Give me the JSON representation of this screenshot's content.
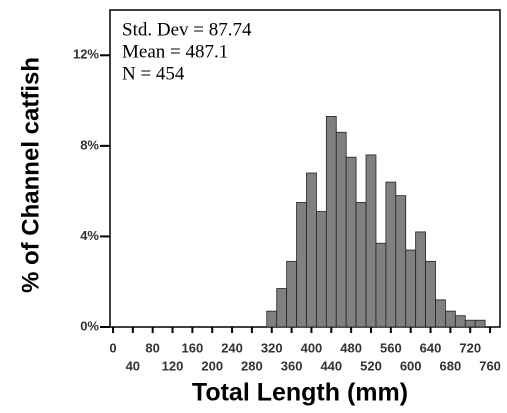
{
  "chart_data": {
    "type": "histogram",
    "annotations": [
      "Std.  Dev = 87.74",
      "Mean = 487.1",
      "N = 454"
    ],
    "x_label": "Total Length (mm)",
    "y_label": "% of Channel catfish",
    "bins": [
      310,
      330,
      350,
      370,
      390,
      410,
      430,
      450,
      470,
      490,
      510,
      530,
      550,
      570,
      590,
      610,
      630,
      650,
      670,
      690,
      710,
      730,
      750
    ],
    "values": [
      0.7,
      1.7,
      2.9,
      5.5,
      6.8,
      5.1,
      9.3,
      8.6,
      7.5,
      5.5,
      7.6,
      3.7,
      6.4,
      5.8,
      3.4,
      4.2,
      2.9,
      1.2,
      0.7,
      0.5,
      0.3,
      0.3
    ],
    "color": "#808080",
    "xlim": [
      -6,
      780
    ],
    "ylim": [
      0,
      14
    ],
    "xticks": [
      0,
      40,
      80,
      120,
      160,
      200,
      240,
      280,
      320,
      360,
      400,
      440,
      480,
      520,
      560,
      600,
      640,
      680,
      720,
      760
    ],
    "yticks": [
      {
        "value": 0,
        "label": "0%"
      },
      {
        "value": 4,
        "label": "4%"
      },
      {
        "value": 8,
        "label": "8%"
      },
      {
        "value": 12,
        "label": "12%"
      }
    ]
  }
}
